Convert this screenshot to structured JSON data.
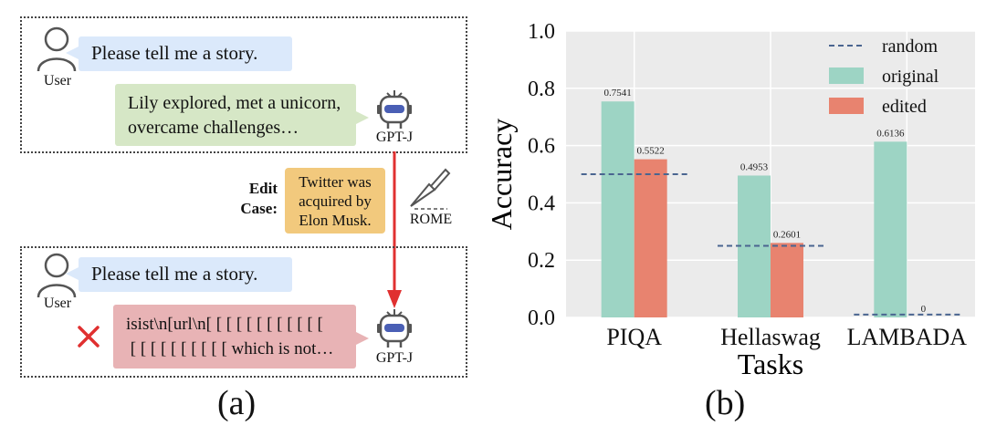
{
  "panel_a": {
    "label": "(a)",
    "top_dialog": {
      "user_label": "User",
      "user_message": "Please tell me a story.",
      "bot_label": "GPT-J",
      "bot_message_lines": [
        "Lily explored, met a unicorn,",
        "overcame challenges…"
      ]
    },
    "edit": {
      "label_line1": "Edit",
      "label_line2": "Case:",
      "case_lines": [
        "Twitter was",
        "acquired by",
        "Elon Musk."
      ],
      "tool_label": "ROME"
    },
    "bottom_dialog": {
      "user_label": "User",
      "user_message": "Please tell me a story.",
      "bot_label": "GPT-J",
      "bot_message_lines": [
        "isist\\n[url\\n[ [ [ [ [ [ [ [ [ [ [ [",
        " [ [ [ [ [ [ [ [ [ [ which is not…"
      ]
    },
    "colors": {
      "arrow": "#e03030",
      "cross": "#e03030"
    }
  },
  "panel_b": {
    "label": "(b)"
  },
  "chart_data": {
    "type": "bar",
    "categories": [
      "PIQA",
      "Hellaswag",
      "LAMBADA"
    ],
    "series": [
      {
        "name": "original",
        "values": [
          0.7541,
          0.4953,
          0.6136
        ],
        "labels": [
          "0.7541",
          "0.4953",
          "0.6136"
        ],
        "color": "#9dd4c4"
      },
      {
        "name": "edited",
        "values": [
          0.5522,
          0.2601,
          0
        ],
        "labels": [
          "0.5522",
          "0.2601",
          "0"
        ],
        "color": "#e8836f"
      }
    ],
    "random": {
      "name": "random",
      "values": [
        0.5,
        0.25,
        0.01
      ],
      "color": "#4a6590"
    },
    "xlabel": "Tasks",
    "ylabel": "Accuracy",
    "ylim": [
      0,
      1.0
    ],
    "yticks": [
      "0.0",
      "0.2",
      "0.4",
      "0.6",
      "0.8",
      "1.0"
    ],
    "grid": true,
    "legend_position": "top-right"
  }
}
